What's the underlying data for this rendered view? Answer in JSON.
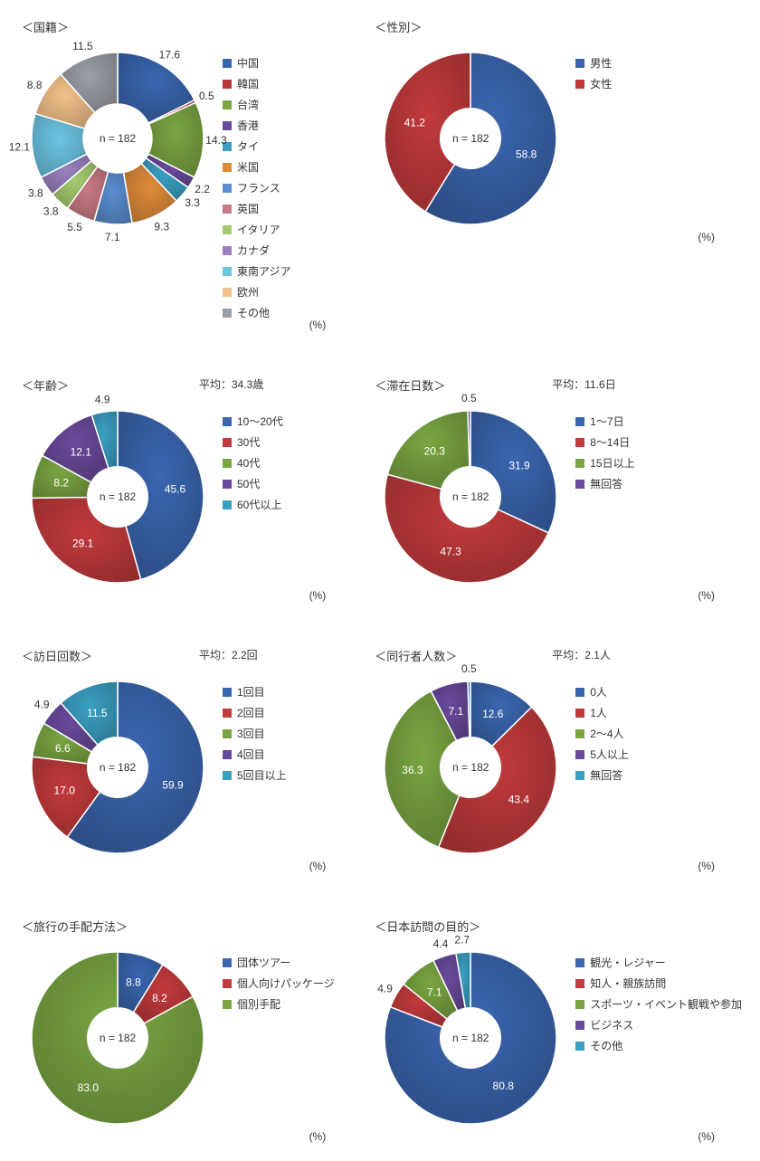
{
  "n_label": "n = 182",
  "pct_unit": "(%)",
  "charts": [
    {
      "id": "nationality",
      "title": "＜国籍＞",
      "avg": null,
      "inner_ratio": 0.4,
      "label_pos": "out",
      "slices": [
        {
          "label": "中国",
          "value": 17.6,
          "color": "#3a66b0"
        },
        {
          "label": "韓国",
          "value": 0.5,
          "color": "#b83a3c"
        },
        {
          "label": "台湾",
          "value": 14.3,
          "color": "#7aa642"
        },
        {
          "label": "香港",
          "value": 2.2,
          "color": "#6a4a9c"
        },
        {
          "label": "タイ",
          "value": 3.3,
          "color": "#3aa0c2"
        },
        {
          "label": "米国",
          "value": 9.3,
          "color": "#e08b3a"
        },
        {
          "label": "フランス",
          "value": 7.1,
          "color": "#5a8ed0"
        },
        {
          "label": "英国",
          "value": 5.5,
          "color": "#c97b85"
        },
        {
          "label": "イタリア",
          "value": 3.8,
          "color": "#a6cc70"
        },
        {
          "label": "カナダ",
          "value": 3.8,
          "color": "#9a82c0"
        },
        {
          "label": "東南アジア",
          "value": 12.1,
          "color": "#6cc5e3"
        },
        {
          "label": "欧州",
          "value": 8.8,
          "color": "#f2c18a"
        },
        {
          "label": "その他",
          "value": 11.5,
          "color": "#9aa0a6"
        }
      ]
    },
    {
      "id": "gender",
      "title": "＜性別＞",
      "avg": null,
      "inner_ratio": 0.35,
      "label_pos": "in",
      "slices": [
        {
          "label": "男性",
          "value": 58.8,
          "color": "#3a66b0"
        },
        {
          "label": "女性",
          "value": 41.2,
          "color": "#c23a3c"
        }
      ]
    },
    {
      "id": "age",
      "title": "＜年齢＞",
      "avg": "平均：34.3歳",
      "inner_ratio": 0.35,
      "label_pos": "in",
      "slices": [
        {
          "label": "10～20代",
          "value": 45.6,
          "color": "#3a66b0"
        },
        {
          "label": "30代",
          "value": 29.1,
          "color": "#c23a3c"
        },
        {
          "label": "40代",
          "value": 8.2,
          "color": "#7aa642"
        },
        {
          "label": "50代",
          "value": 12.1,
          "color": "#6a4a9c"
        },
        {
          "label": "60代以上",
          "value": 4.9,
          "color": "#3aa0c2"
        }
      ]
    },
    {
      "id": "stay",
      "title": "＜滞在日数＞",
      "avg": "平均：11.6日",
      "inner_ratio": 0.35,
      "label_pos": "in",
      "slices": [
        {
          "label": "1～7日",
          "value": 31.9,
          "color": "#3a66b0"
        },
        {
          "label": "8～14日",
          "value": 47.3,
          "color": "#c23a3c"
        },
        {
          "label": "15日以上",
          "value": 20.3,
          "color": "#7aa642"
        },
        {
          "label": "無回答",
          "value": 0.5,
          "color": "#6a4a9c"
        }
      ]
    },
    {
      "id": "visits",
      "title": "＜訪日回数＞",
      "avg": "平均：2.2回",
      "inner_ratio": 0.35,
      "label_pos": "in",
      "slices": [
        {
          "label": "1回目",
          "value": 59.9,
          "color": "#3a66b0"
        },
        {
          "label": "2回目",
          "value": 17.0,
          "color": "#c23a3c"
        },
        {
          "label": "3回目",
          "value": 6.6,
          "color": "#7aa642"
        },
        {
          "label": "4回目",
          "value": 4.9,
          "color": "#6a4a9c"
        },
        {
          "label": "5回目以上",
          "value": 11.5,
          "color": "#3aa0c2"
        }
      ]
    },
    {
      "id": "companions",
      "title": "＜同行者人数＞",
      "avg": "平均：2.1人",
      "inner_ratio": 0.35,
      "label_pos": "in",
      "slices": [
        {
          "label": "0人",
          "value": 12.6,
          "color": "#3a66b0"
        },
        {
          "label": "1人",
          "value": 43.4,
          "color": "#c23a3c"
        },
        {
          "label": "2～4人",
          "value": 36.3,
          "color": "#7aa642"
        },
        {
          "label": "5人以上",
          "value": 7.1,
          "color": "#6a4a9c"
        },
        {
          "label": "無回答",
          "value": 0.5,
          "color": "#3aa0c2"
        }
      ]
    },
    {
      "id": "arrange",
      "title": "＜旅行の手配方法＞",
      "avg": null,
      "inner_ratio": 0.35,
      "label_pos": "in",
      "slices": [
        {
          "label": "団体ツアー",
          "value": 8.8,
          "color": "#3a66b0"
        },
        {
          "label": "個人向けパッケージ",
          "value": 8.2,
          "color": "#c23a3c"
        },
        {
          "label": "個別手配",
          "value": 83.0,
          "color": "#7aa642"
        }
      ]
    },
    {
      "id": "purpose",
      "title": "＜日本訪問の目的＞",
      "avg": null,
      "inner_ratio": 0.35,
      "label_pos": "in",
      "slices": [
        {
          "label": "観光・レジャー",
          "value": 80.8,
          "color": "#3a66b0"
        },
        {
          "label": "知人・親族訪問",
          "value": 4.9,
          "color": "#c23a3c"
        },
        {
          "label": "スポーツ・イベント観戦や参加",
          "value": 7.1,
          "color": "#7aa642"
        },
        {
          "label": "ビジネス",
          "value": 4.4,
          "color": "#6a4a9c"
        },
        {
          "label": "その他",
          "value": 2.7,
          "color": "#3aa0c2"
        }
      ]
    }
  ]
}
